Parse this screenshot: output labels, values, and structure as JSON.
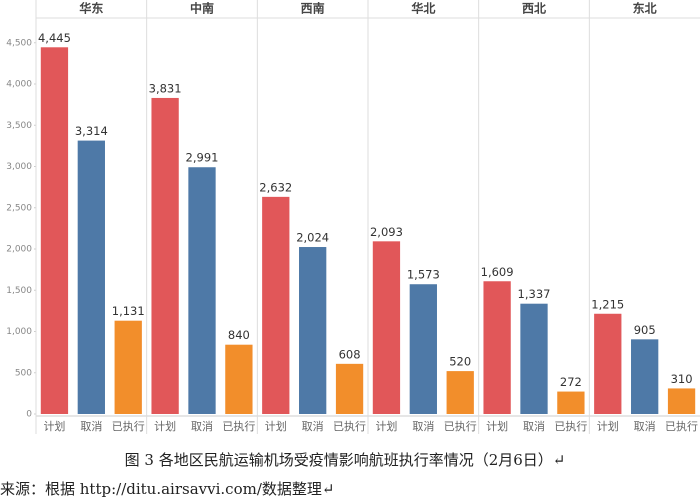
{
  "chart_data": {
    "type": "bar",
    "categories": [
      "计划",
      "取消",
      "已执行"
    ],
    "colors": [
      "#e15759",
      "#4e79a7",
      "#f28e2b"
    ],
    "panels": [
      {
        "name": "华东",
        "values": [
          4445,
          3314,
          1131
        ],
        "value_labels": [
          "4,445",
          "3,314",
          "1,131"
        ]
      },
      {
        "name": "中南",
        "values": [
          3831,
          2991,
          840
        ],
        "value_labels": [
          "3,831",
          "2,991",
          "840"
        ]
      },
      {
        "name": "西南",
        "values": [
          2632,
          2024,
          608
        ],
        "value_labels": [
          "2,632",
          "2,024",
          "608"
        ]
      },
      {
        "name": "华北",
        "values": [
          2093,
          1573,
          520
        ],
        "value_labels": [
          "2,093",
          "1,573",
          "520"
        ]
      },
      {
        "name": "西北",
        "values": [
          1609,
          1337,
          272
        ],
        "value_labels": [
          "1,609",
          "1,337",
          "272"
        ]
      },
      {
        "name": "东北",
        "values": [
          1215,
          905,
          310
        ],
        "value_labels": [
          "1,215",
          "905",
          "310"
        ]
      }
    ],
    "ylim": [
      0,
      4800
    ],
    "yticks": [
      0,
      500,
      {
        "value": 1000,
        "label": "1,000"
      },
      {
        "value": 1500,
        "label": "1,500"
      },
      {
        "value": 2000,
        "label": "2,000"
      },
      {
        "value": 2500,
        "label": "2,500"
      },
      {
        "value": 3000,
        "label": "3,000"
      },
      {
        "value": 3500,
        "label": "3,500"
      },
      {
        "value": 4000,
        "label": "4,000"
      },
      {
        "value": 4500,
        "label": "4,500"
      }
    ],
    "grid": false,
    "caption": "图 3 各地区民航运输机场受疫情影响航班执行率情况（2月6日）↵",
    "source": "来源：根据 http://ditu.airsavvi.com/数据整理↵"
  }
}
